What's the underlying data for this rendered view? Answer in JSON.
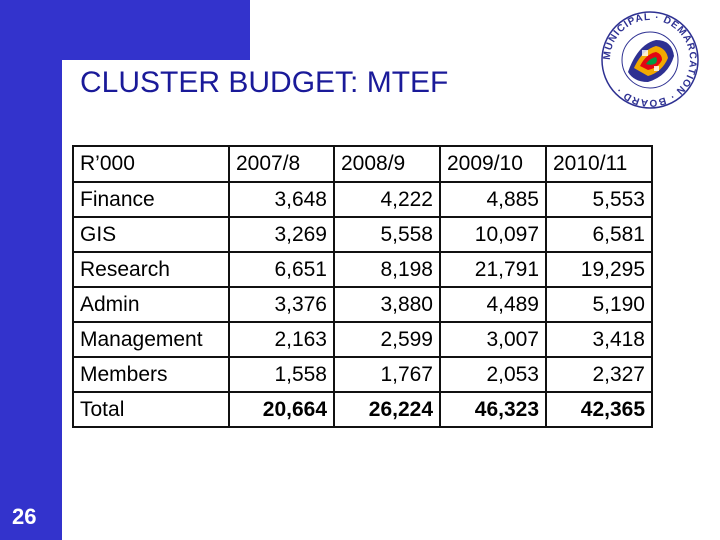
{
  "slide": {
    "title": "CLUSTER BUDGET: MTEF",
    "page_number": "26"
  },
  "logo": {
    "ring_text": "MUNICIPAL · DEMARCATION · BOARD ·",
    "colors": [
      "#2e3192",
      "#f2a900",
      "#e30613",
      "#009a44",
      "#ffffff"
    ]
  },
  "table": {
    "headers": [
      "R’000",
      "2007/8",
      "2008/9",
      "2009/10",
      "2010/11"
    ],
    "rows": [
      {
        "label": "Finance",
        "values": [
          "3,648",
          "4,222",
          "4,885",
          "5,553"
        ]
      },
      {
        "label": "GIS",
        "values": [
          "3,269",
          "5,558",
          "10,097",
          "6,581"
        ]
      },
      {
        "label": "Research",
        "values": [
          "6,651",
          "8,198",
          "21,791",
          "19,295"
        ]
      },
      {
        "label": "Admin",
        "values": [
          "3,376",
          "3,880",
          "4,489",
          "5,190"
        ]
      },
      {
        "label": "Management",
        "values": [
          "2,163",
          "2,599",
          "3,007",
          "3,418"
        ]
      },
      {
        "label": "Members",
        "values": [
          "1,558",
          "1,767",
          "2,053",
          "2,327"
        ]
      },
      {
        "label": "Total",
        "values": [
          "20,664",
          "26,224",
          "46,323",
          "42,365"
        ]
      }
    ]
  }
}
